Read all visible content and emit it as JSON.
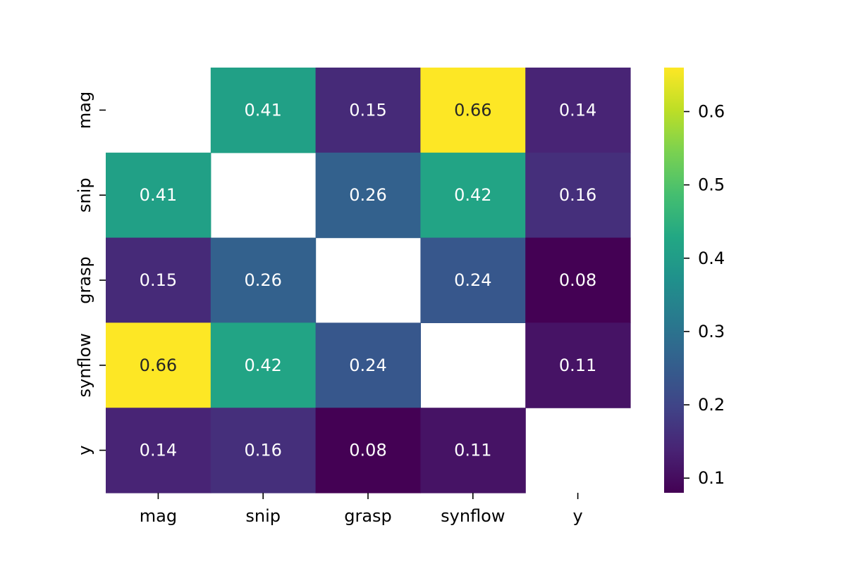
{
  "chart_data": {
    "type": "heatmap",
    "title": "",
    "xlabel": "",
    "ylabel": "",
    "x_categories": [
      "mag",
      "snip",
      "grasp",
      "synflow",
      "y"
    ],
    "y_categories": [
      "mag",
      "snip",
      "grasp",
      "synflow",
      "y"
    ],
    "values": [
      [
        null,
        0.41,
        0.15,
        0.66,
        0.14
      ],
      [
        0.41,
        null,
        0.26,
        0.42,
        0.16
      ],
      [
        0.15,
        0.26,
        null,
        0.24,
        0.08
      ],
      [
        0.66,
        0.42,
        0.24,
        null,
        0.11
      ],
      [
        0.14,
        0.16,
        0.08,
        0.11,
        null
      ]
    ],
    "annotation_format": "0.00",
    "colormap": "viridis",
    "colorbar": {
      "vmin": 0.08,
      "vmax": 0.66,
      "ticks": [
        0.1,
        0.2,
        0.3,
        0.4,
        0.5,
        0.6
      ],
      "tick_labels": [
        "0.1",
        "0.2",
        "0.3",
        "0.4",
        "0.5",
        "0.6"
      ]
    },
    "grid": false,
    "legend": "colorbar-right"
  }
}
